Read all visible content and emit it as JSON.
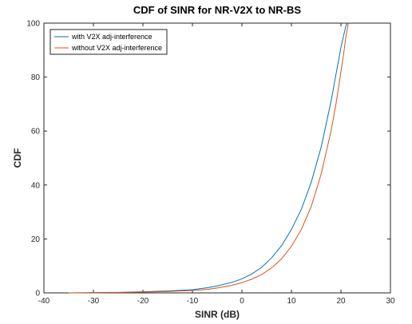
{
  "chart_data": {
    "type": "line",
    "title": "CDF of SINR for NR-V2X to NR-BS",
    "xlabel": "SINR (dB)",
    "ylabel": "CDF",
    "xlim": [
      -40,
      30
    ],
    "ylim": [
      0,
      100
    ],
    "xticks": [
      -40,
      -30,
      -20,
      -10,
      0,
      10,
      20,
      30
    ],
    "yticks": [
      0,
      20,
      40,
      60,
      80,
      100
    ],
    "grid": false,
    "legend_position": "top-left",
    "series": [
      {
        "name": "with V2X adj-interference",
        "color": "#0072BD",
        "x": [
          -35,
          -30,
          -25,
          -20,
          -15,
          -10,
          -7,
          -5,
          -2,
          0,
          2,
          4,
          6,
          8,
          10,
          12,
          14,
          16,
          18,
          19,
          20,
          20.5,
          21,
          21.3
        ],
        "y": [
          0,
          0.1,
          0.2,
          0.4,
          0.7,
          1.2,
          1.9,
          2.6,
          3.9,
          5.2,
          7.0,
          9.5,
          13.0,
          17.5,
          23.5,
          31.0,
          41.0,
          54.0,
          71.0,
          81.0,
          91.0,
          95.0,
          99.0,
          100
        ]
      },
      {
        "name": "without V2X adj-interference",
        "color": "#D95319",
        "x": [
          -35,
          -30,
          -25,
          -20,
          -15,
          -10,
          -7,
          -5,
          -2,
          0,
          2,
          4,
          6,
          8,
          10,
          12,
          14,
          16,
          18,
          19,
          20,
          20.5,
          21,
          21.5
        ],
        "y": [
          0,
          0.05,
          0.15,
          0.3,
          0.5,
          0.9,
          1.3,
          1.8,
          2.8,
          3.8,
          5.1,
          6.8,
          9.3,
          12.6,
          17.3,
          23.5,
          32.0,
          44.0,
          60.0,
          70.0,
          82.0,
          88.0,
          95.0,
          100
        ]
      }
    ]
  }
}
